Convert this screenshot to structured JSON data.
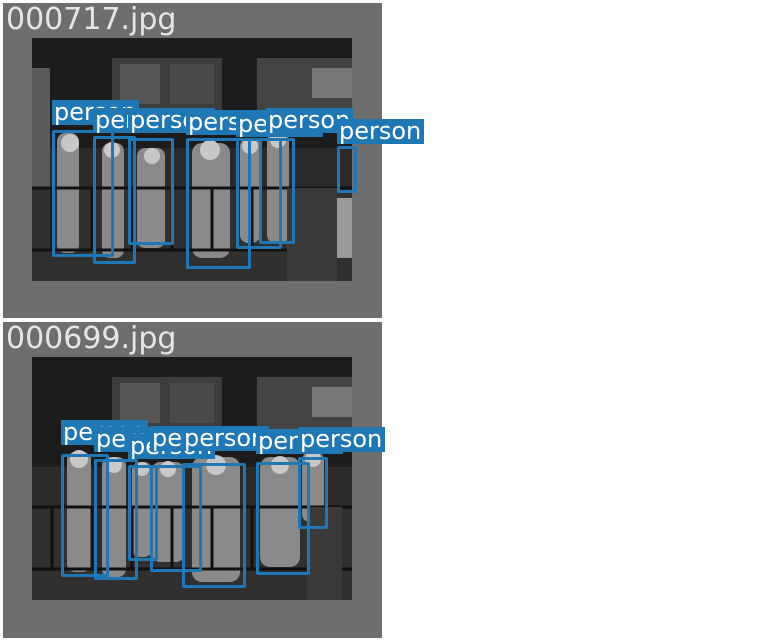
{
  "panels": [
    {
      "filename": "000717.jpg",
      "detections": [
        {
          "label": "person"
        },
        {
          "label": "person"
        },
        {
          "label": "person"
        },
        {
          "label": "person"
        },
        {
          "label": "person"
        },
        {
          "label": "person"
        },
        {
          "label": "person"
        }
      ]
    },
    {
      "filename": "000699.jpg",
      "detections": [
        {
          "label": "person"
        },
        {
          "label": "person"
        },
        {
          "label": "person"
        },
        {
          "label": "person"
        },
        {
          "label": "person"
        },
        {
          "label": "person"
        },
        {
          "label": "person"
        }
      ]
    }
  ],
  "colors": {
    "box": "#1f77b4",
    "panel_bg": "#6e6e6e",
    "filename_text": "#e6e6e6"
  }
}
